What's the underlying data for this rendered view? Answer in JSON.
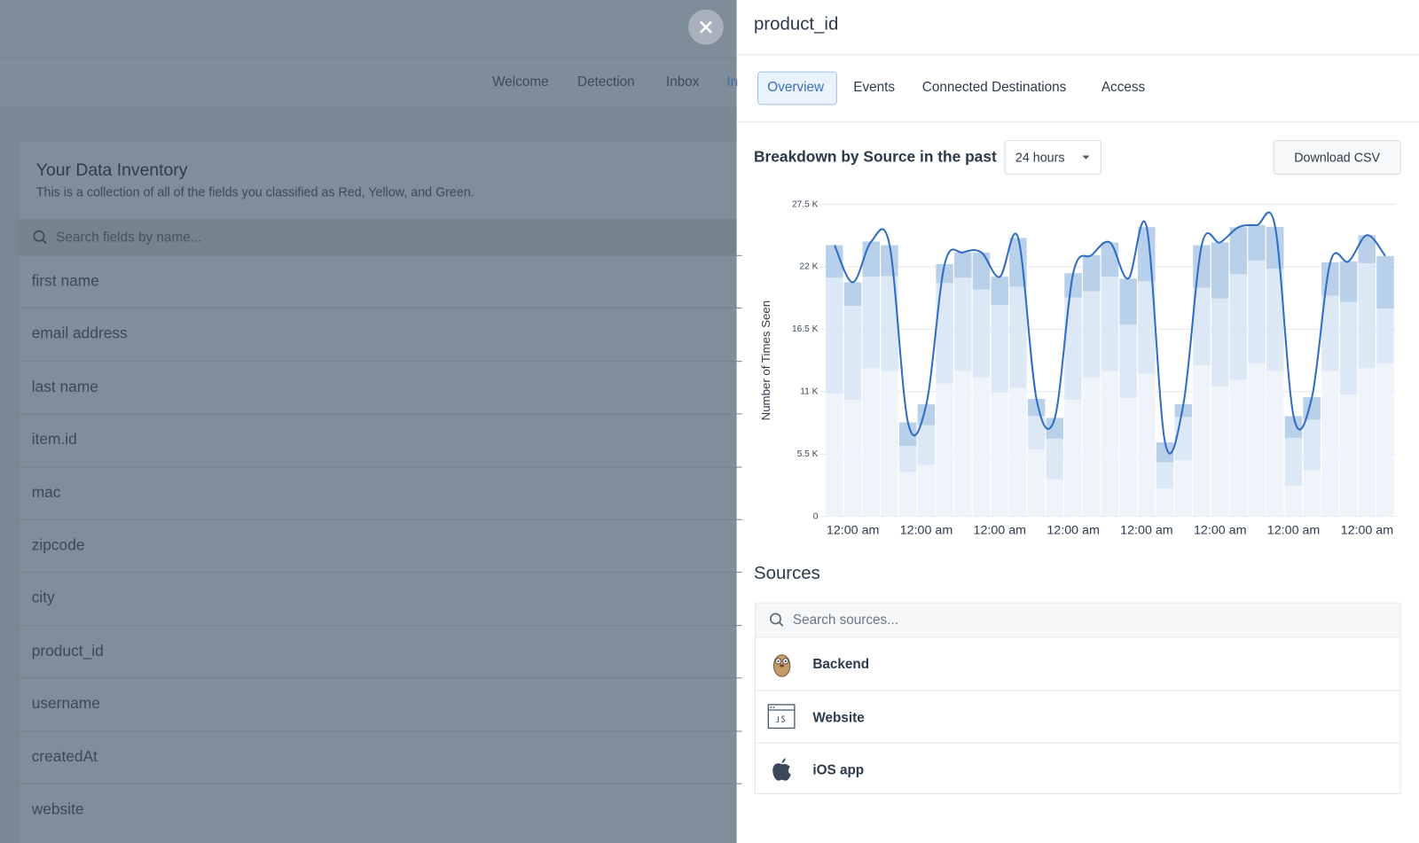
{
  "background": {
    "nav": [
      "Welcome",
      "Detection",
      "Inbox",
      "In"
    ],
    "inventory": {
      "title": "Your Data Inventory",
      "subtitle": "This is a collection of all of the fields you classified as Red, Yellow, and Green.",
      "search_placeholder": "Search fields by name...",
      "fields": [
        "first name",
        "email address",
        "last name",
        "item.id",
        "mac",
        "zipcode",
        "city",
        "product_id",
        "username",
        "createdAt",
        "website"
      ]
    }
  },
  "panel": {
    "title": "product_id",
    "tabs": [
      "Overview",
      "Events",
      "Connected Destinations",
      "Access"
    ],
    "breakdown_label": "Breakdown by Source in the past",
    "range": "24 hours",
    "download": "Download CSV",
    "sources_title": "Sources",
    "sources_search": "Search sources..."
  },
  "chart_data": {
    "type": "stacked_bar",
    "y_label": "Number of Times Seen",
    "categories": [
      null,
      "12:00 am",
      null,
      null,
      null,
      "12:00 am",
      null,
      null,
      null,
      "12:00 am",
      null,
      null,
      null,
      "12:00 am",
      null,
      null,
      null,
      "12:00 am",
      null,
      null,
      null,
      "12:00 am",
      null,
      null,
      null,
      "12:00 am",
      null,
      null,
      null,
      "12:00 am",
      null
    ],
    "series": [
      {
        "name": "Backend",
        "color": "#eff4fb",
        "values": [
          10840,
          10280,
          13070,
          12830,
          3910,
          4540,
          11720,
          12830,
          12270,
          10920,
          11320,
          5900,
          3270,
          10280,
          12270,
          12830,
          10440,
          12590,
          2470,
          4940,
          13310,
          11480,
          12030,
          13470,
          12830,
          2710,
          4060,
          12830,
          10760,
          13070,
          13470
        ]
      },
      {
        "name": "Website",
        "color": "#dce8f6",
        "values": [
          10200,
          8290,
          8050,
          8370,
          2310,
          3510,
          8850,
          8210,
          7730,
          7730,
          8930,
          2950,
          3590,
          9010,
          7570,
          8290,
          6460,
          8130,
          2310,
          3830,
          6850,
          7730,
          9320,
          9090,
          9010,
          4220,
          4460,
          6620,
          8130,
          9250,
          4860
        ]
      },
      {
        "name": "iOS app",
        "color": "#b9d0ea",
        "values": [
          2870,
          2070,
          3110,
          2710,
          2070,
          1830,
          1670,
          2230,
          3270,
          2470,
          4300,
          1510,
          1830,
          2150,
          3190,
          3030,
          4060,
          4780,
          1750,
          1120,
          3750,
          4940,
          4140,
          3110,
          3670,
          1910,
          1990,
          2950,
          3590,
          2470,
          4620
        ]
      }
    ],
    "line": {
      "color": "#2f6cc3",
      "values": [
        23910,
        20640,
        24230,
        23910,
        8290,
        9880,
        22240,
        23270,
        23270,
        21120,
        24550,
        10360,
        8690,
        21440,
        23030,
        24150,
        20960,
        25500,
        6530,
        9890,
        23910,
        24150,
        25490,
        25670,
        25510,
        8840,
        10510,
        22400,
        22480,
        24790,
        22950
      ]
    },
    "ylim": [
      0,
      27500
    ],
    "yticks": [
      0,
      {
        "value": 5500,
        "label": "5.5 K"
      },
      {
        "value": 11000,
        "label": "11 K"
      },
      {
        "value": 16500,
        "label": "16.5 K"
      },
      {
        "value": 22000,
        "label": "22 K"
      },
      {
        "value": 27500,
        "label": "27.5 K"
      }
    ],
    "grid": true
  }
}
